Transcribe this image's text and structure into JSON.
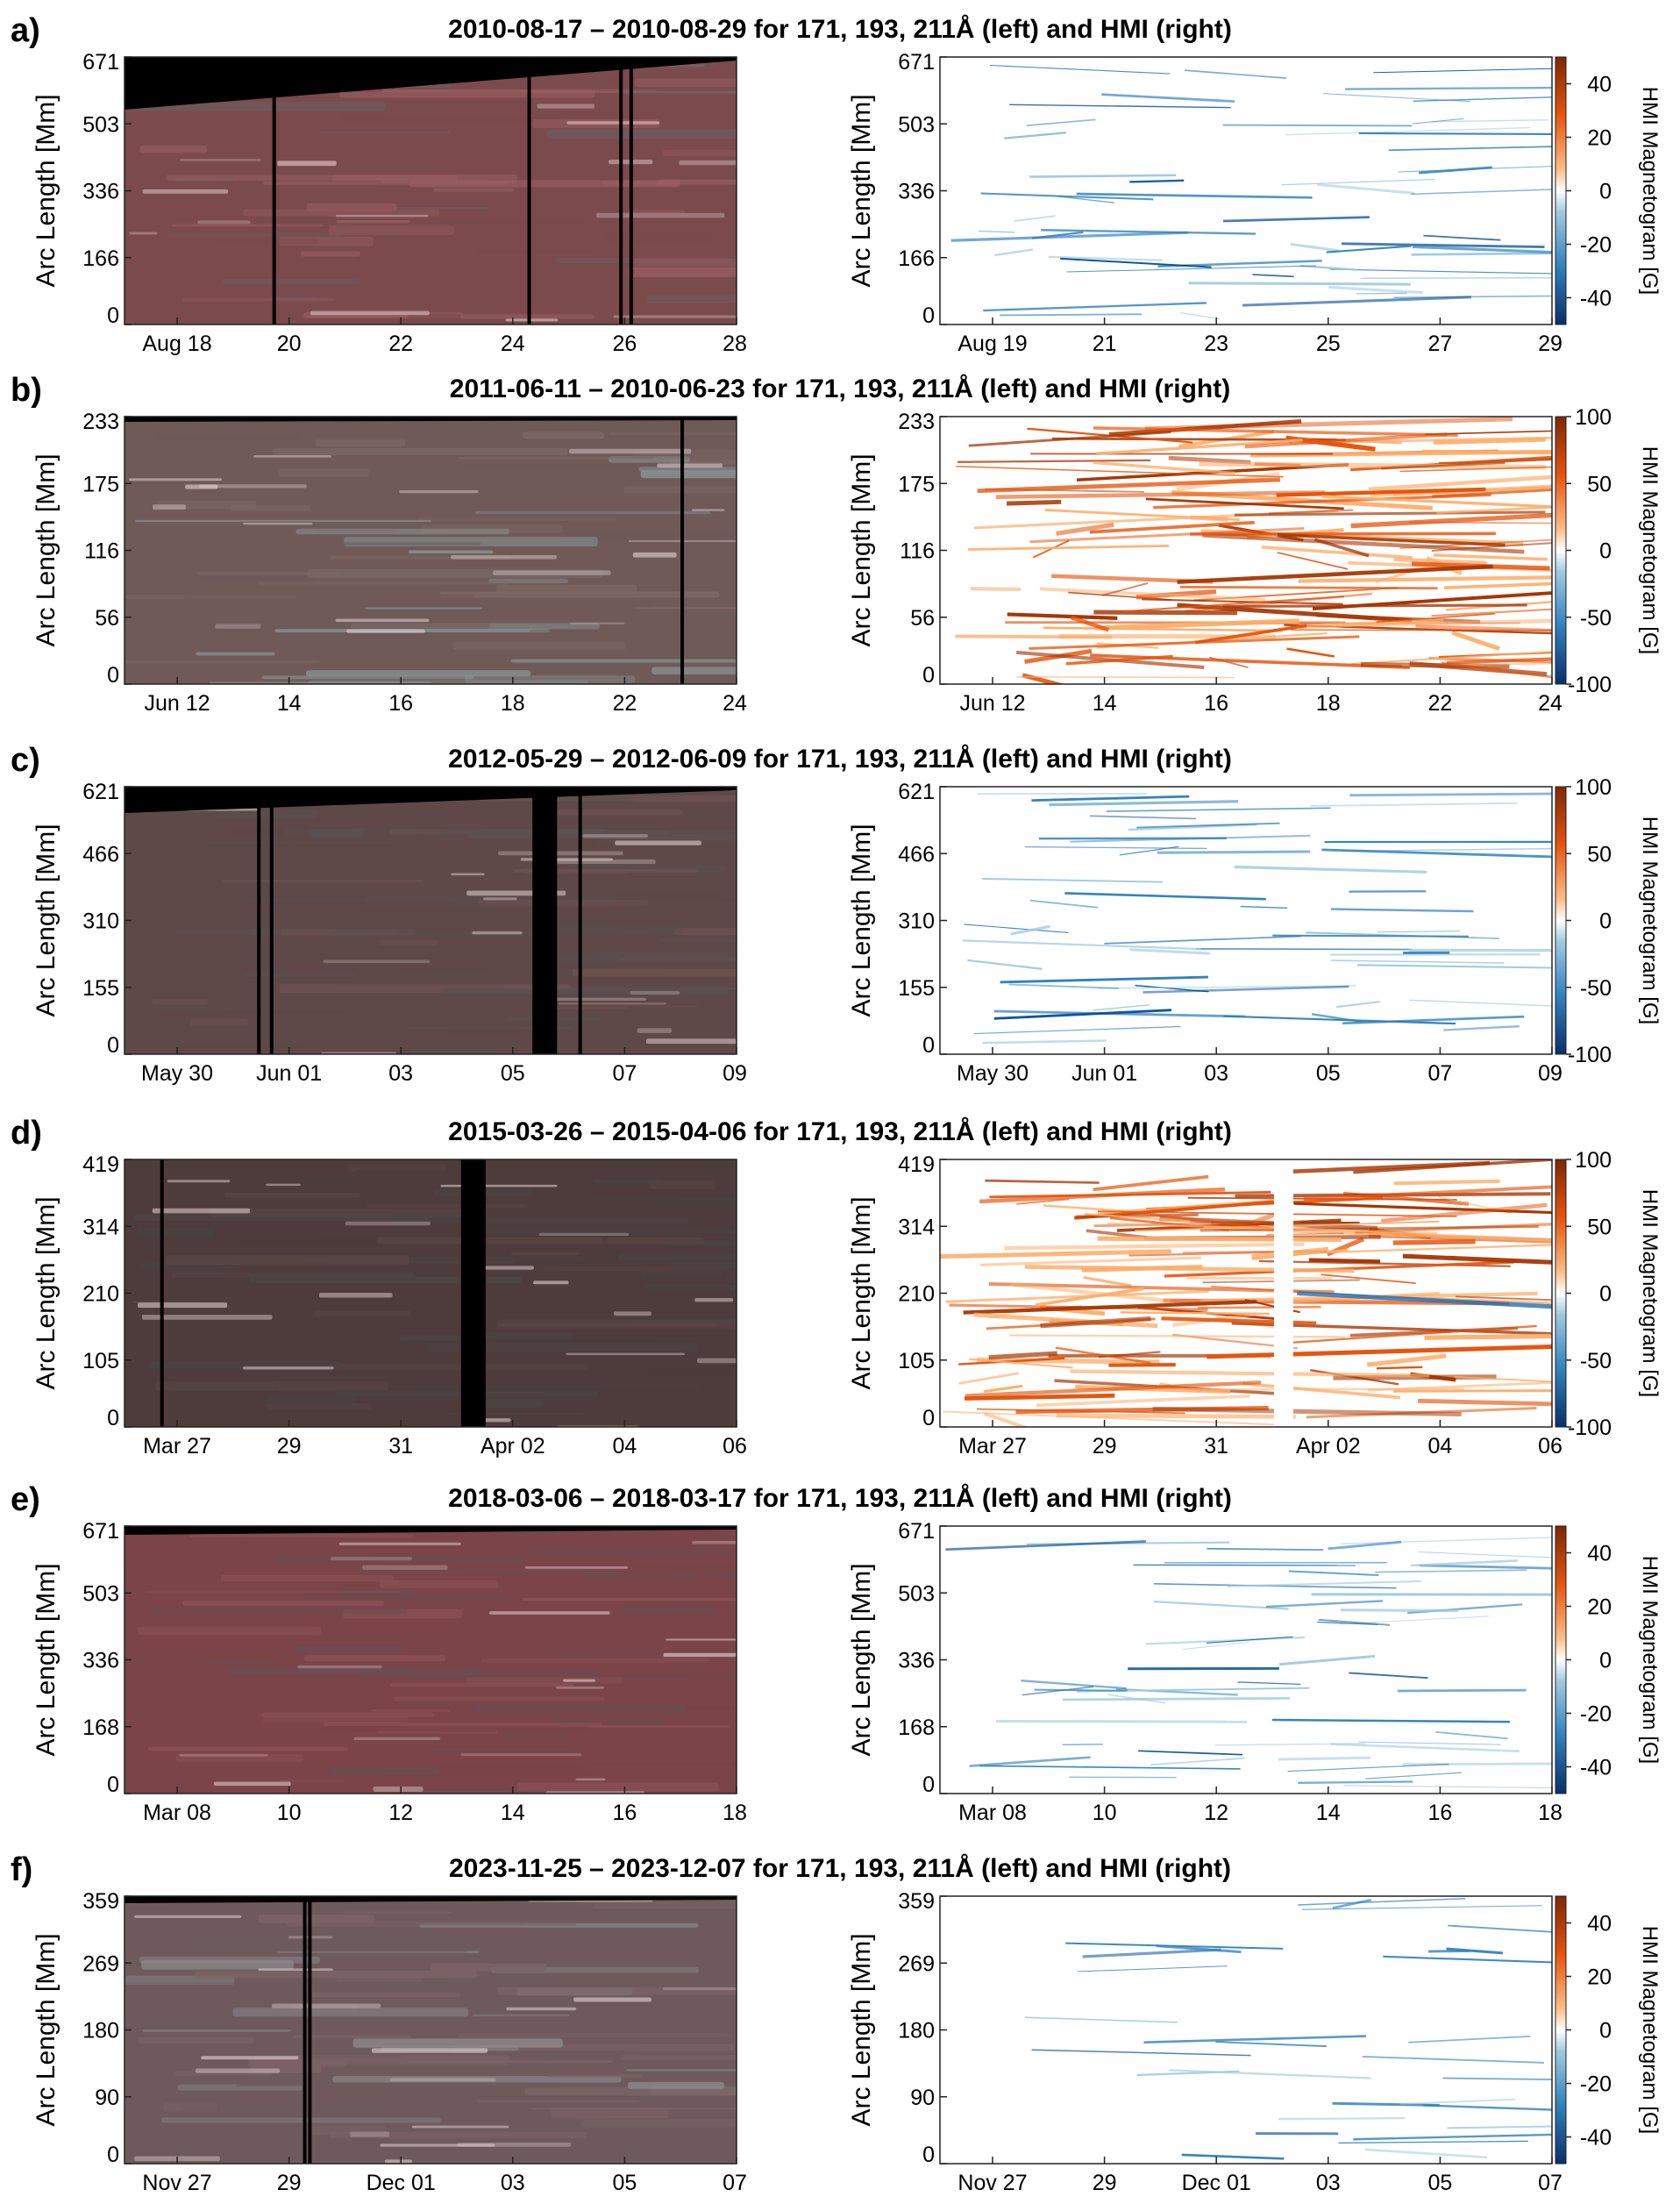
{
  "figure": {
    "description_labels": [
      "a)",
      "b)",
      "c)",
      "d)",
      "e)",
      "f)"
    ]
  },
  "chart_data": [
    {
      "type": "heatmap",
      "panel": "a)",
      "title": "2010-08-17 – 2010-08-29 for 171, 193, 211Å (left) and HMI (right)",
      "ylabel": "Arc Length [Mm]",
      "yticks": [
        "0",
        "166",
        "336",
        "503",
        "671"
      ],
      "ylim": [
        0,
        671
      ],
      "left_xticks": [
        "Aug 18",
        "20",
        "22",
        "24",
        "26",
        "28"
      ],
      "right_xticks": [
        "Aug 19",
        "21",
        "23",
        "25",
        "27",
        "29"
      ],
      "colorbar_label": "HMI Magnetogram [G]",
      "colorbar_ticks": [
        "40",
        "20",
        "0",
        "-20",
        "-40"
      ],
      "colorbar_range": [
        -50,
        50
      ],
      "polarity": "negative",
      "aia_palette": [
        "#7a4a4c",
        "#9a5f63",
        "#6e5a5e"
      ],
      "left_gaps_days": [
        2.9,
        7.9,
        9.7,
        9.9
      ],
      "right_gaps_days": []
    },
    {
      "type": "heatmap",
      "panel": "b)",
      "title": "2011-06-11 – 2010-06-23 for 171, 193, 211Å (left) and HMI (right)",
      "ylabel": "Arc Length [Mm]",
      "yticks": [
        "0",
        "56",
        "116",
        "175",
        "233"
      ],
      "ylim": [
        0,
        233
      ],
      "left_xticks": [
        "Jun 12",
        "14",
        "16",
        "18",
        "22",
        "24"
      ],
      "right_xticks": [
        "Jun 12",
        "14",
        "16",
        "18",
        "22",
        "24"
      ],
      "colorbar_label": "HMI Magnetogram [G]",
      "colorbar_ticks": [
        "100",
        "50",
        "0",
        "-50",
        "-100"
      ],
      "colorbar_range": [
        -100,
        100
      ],
      "polarity": "positive",
      "aia_palette": [
        "#6f5a58",
        "#7d6866",
        "#8a9a9c"
      ],
      "left_gaps_days": [
        10.9
      ],
      "right_gaps_days": []
    },
    {
      "type": "heatmap",
      "panel": "c)",
      "title": "2012-05-29 – 2012-06-09 for 171, 193, 211Å (left) and HMI (right)",
      "ylabel": "Arc Length [Mm]",
      "yticks": [
        "0",
        "155",
        "310",
        "466",
        "621"
      ],
      "ylim": [
        0,
        621
      ],
      "left_xticks": [
        "May 30",
        "Jun 01",
        "03",
        "05",
        "07",
        "09"
      ],
      "right_xticks": [
        "May 30",
        "Jun 01",
        "03",
        "05",
        "07",
        "09"
      ],
      "colorbar_label": "HMI Magnetogram [G]",
      "colorbar_ticks": [
        "100",
        "50",
        "0",
        "-50",
        "-100"
      ],
      "colorbar_range": [
        -100,
        100
      ],
      "polarity": "negative",
      "aia_palette": [
        "#5e4848",
        "#6e5252",
        "#5a5050"
      ],
      "left_gaps_days": [
        2.6,
        2.85,
        8.0,
        8.15,
        8.3,
        8.9
      ],
      "right_gaps_days": []
    },
    {
      "type": "heatmap",
      "panel": "d)",
      "title": "2015-03-26 – 2015-04-06 for 171, 193, 211Å (left) and HMI (right)",
      "ylabel": "Arc Length [Mm]",
      "yticks": [
        "0",
        "105",
        "210",
        "314",
        "419"
      ],
      "ylim": [
        0,
        419
      ],
      "left_xticks": [
        "Mar 27",
        "29",
        "31",
        "Apr 02",
        "04",
        "06"
      ],
      "right_xticks": [
        "Mar 27",
        "29",
        "31",
        "Apr 02",
        "04",
        "06"
      ],
      "colorbar_label": "HMI Magnetogram [G]",
      "colorbar_ticks": [
        "100",
        "50",
        "0",
        "-50",
        "-100"
      ],
      "colorbar_range": [
        -100,
        100
      ],
      "polarity": "positive",
      "aia_palette": [
        "#4e3c3c",
        "#5c4646",
        "#4a4444"
      ],
      "left_gaps_days": [
        0.7,
        6.6,
        6.75
      ],
      "right_gaps_days": [
        6.5,
        6.6,
        6.7
      ]
    },
    {
      "type": "heatmap",
      "panel": "e)",
      "title": "2018-03-06 – 2018-03-17 for 171, 193, 211Å (left) and HMI (right)",
      "ylabel": "Arc Length [Mm]",
      "yticks": [
        "0",
        "168",
        "336",
        "503",
        "671"
      ],
      "ylim": [
        0,
        671
      ],
      "left_xticks": [
        "Mar 08",
        "10",
        "12",
        "14",
        "16",
        "18"
      ],
      "right_xticks": [
        "Mar 08",
        "10",
        "12",
        "14",
        "16",
        "18"
      ],
      "colorbar_label": "HMI Magnetogram [G]",
      "colorbar_ticks": [
        "40",
        "20",
        "0",
        "-20",
        "-40"
      ],
      "colorbar_range": [
        -50,
        50
      ],
      "polarity": "negative",
      "aia_palette": [
        "#7a4448",
        "#8e5258",
        "#6a4e52"
      ],
      "left_gaps_days": [],
      "right_gaps_days": []
    },
    {
      "type": "heatmap",
      "panel": "f)",
      "title": "2023-11-25 – 2023-12-07 for 171, 193, 211Å (left) and HMI (right)",
      "ylabel": "Arc Length [Mm]",
      "yticks": [
        "0",
        "90",
        "180",
        "269",
        "359"
      ],
      "ylim": [
        0,
        359
      ],
      "left_xticks": [
        "Nov 27",
        "29",
        "Dec 01",
        "03",
        "05",
        "07"
      ],
      "right_xticks": [
        "Nov 27",
        "29",
        "Dec 01",
        "03",
        "05",
        "07"
      ],
      "colorbar_label": "HMI Magnetogram [G]",
      "colorbar_ticks": [
        "40",
        "20",
        "0",
        "-20",
        "-40"
      ],
      "colorbar_range": [
        -50,
        50
      ],
      "polarity": "sparse",
      "aia_palette": [
        "#6e5a5c",
        "#7c6466",
        "#8c8a8e"
      ],
      "left_gaps_days": [
        3.5,
        3.6
      ],
      "right_gaps_days": []
    }
  ]
}
